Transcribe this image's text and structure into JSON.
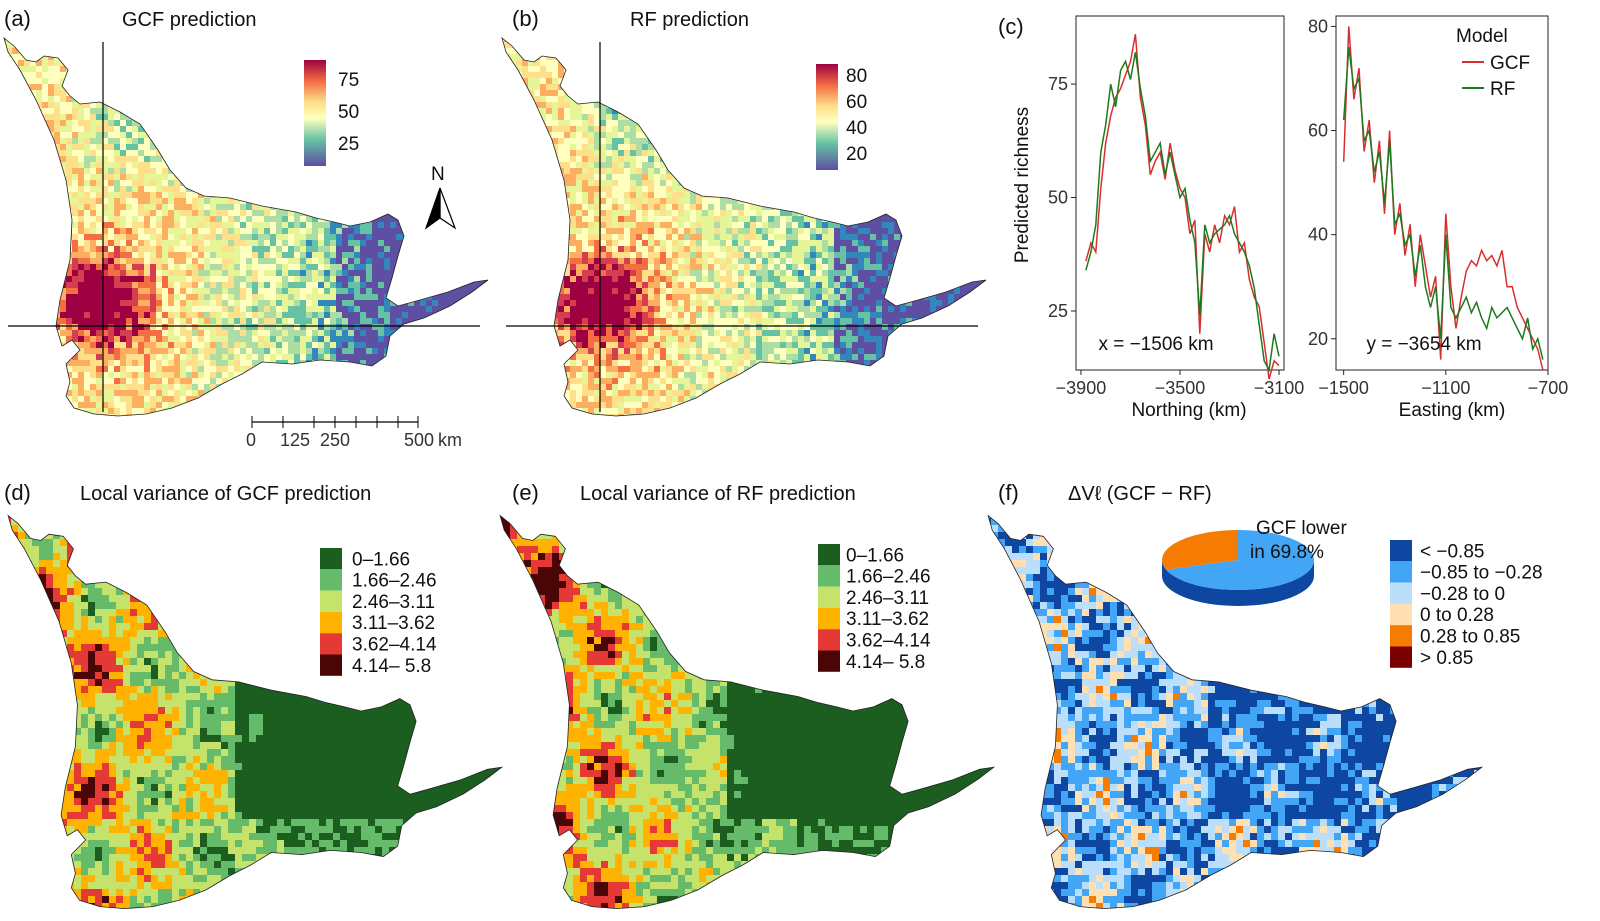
{
  "panels": {
    "a": {
      "label": "(a)",
      "title": "GCF prediction",
      "legend_ticks": [
        "75",
        "50",
        "25"
      ]
    },
    "b": {
      "label": "(b)",
      "title": "RF prediction",
      "legend_ticks": [
        "80",
        "60",
        "40",
        "20"
      ]
    },
    "c": {
      "label": "(c)"
    },
    "d": {
      "label": "(d)",
      "title": "Local variance of GCF prediction"
    },
    "e": {
      "label": "(e)",
      "title": "Local variance of RF prediction"
    },
    "f": {
      "label": "(f)",
      "title": "ΔVℓ (GCF − RF)"
    }
  },
  "north_arrow": {
    "label": "N"
  },
  "scale_bar": {
    "ticks": [
      "0",
      "125",
      "250",
      "500"
    ],
    "unit": "km"
  },
  "variance_legend": {
    "classes": [
      {
        "label": "0–1.66",
        "color": "#1b5e20"
      },
      {
        "label": "1.66–2.46",
        "color": "#66bb6a"
      },
      {
        "label": "2.46–3.11",
        "color": "#c5e36b"
      },
      {
        "label": "3.11–3.62",
        "color": "#ffb300"
      },
      {
        "label": "3.62–4.14",
        "color": "#e53935"
      },
      {
        "label": "4.14– 5.8",
        "color": "#4a0606"
      }
    ]
  },
  "diff_legend": {
    "classes": [
      {
        "label": "< −0.85",
        "color": "#0d47a1"
      },
      {
        "label": "−0.85 to −0.28",
        "color": "#42a5f5"
      },
      {
        "label": "−0.28 to 0",
        "color": "#bbdefb"
      },
      {
        "label": "0 to 0.28",
        "color": "#ffe0b2"
      },
      {
        "label": "0.28 to 0.85",
        "color": "#f57c00"
      },
      {
        "label": "> 0.85",
        "color": "#7b0000"
      }
    ],
    "pie_label_1": "GCF lower",
    "pie_label_2": "in 69.8%",
    "pie_percent": 69.8
  },
  "chart_data": [
    {
      "type": "line",
      "ylabel": "Predicted richness",
      "xlabel": "Northing (km)",
      "annotation": "x = −1506 km",
      "xlim": [
        -3920,
        -3080
      ],
      "ylim": [
        12,
        90
      ],
      "xticks": [
        -3900,
        -3500,
        -3100
      ],
      "yticks": [
        25,
        50,
        75
      ],
      "series": [
        {
          "name": "GCF",
          "color": "#d62f2f",
          "x": [
            -3880,
            -3860,
            -3840,
            -3820,
            -3800,
            -3780,
            -3760,
            -3740,
            -3720,
            -3700,
            -3680,
            -3660,
            -3640,
            -3620,
            -3600,
            -3580,
            -3560,
            -3540,
            -3520,
            -3500,
            -3480,
            -3460,
            -3440,
            -3420,
            -3400,
            -3380,
            -3360,
            -3340,
            -3320,
            -3300,
            -3280,
            -3260,
            -3240,
            -3220,
            -3200,
            -3180,
            -3160,
            -3140,
            -3120,
            -3100
          ],
          "y": [
            36,
            40,
            38,
            52,
            62,
            68,
            72,
            74,
            77,
            80,
            86,
            72,
            66,
            55,
            58,
            60,
            54,
            62,
            56,
            52,
            50,
            42,
            45,
            20,
            42,
            38,
            44,
            40,
            46,
            44,
            48,
            38,
            40,
            32,
            28,
            26,
            18,
            10,
            14,
            13
          ]
        },
        {
          "name": "RF",
          "color": "#1e7a1e",
          "x": [
            -3880,
            -3860,
            -3840,
            -3820,
            -3800,
            -3780,
            -3760,
            -3740,
            -3720,
            -3700,
            -3680,
            -3660,
            -3640,
            -3620,
            -3600,
            -3580,
            -3560,
            -3540,
            -3520,
            -3500,
            -3480,
            -3460,
            -3440,
            -3420,
            -3400,
            -3380,
            -3360,
            -3340,
            -3320,
            -3300,
            -3280,
            -3260,
            -3240,
            -3220,
            -3200,
            -3180,
            -3160,
            -3140,
            -3120,
            -3100
          ],
          "y": [
            34,
            38,
            44,
            60,
            66,
            75,
            70,
            78,
            80,
            76,
            82,
            74,
            68,
            58,
            60,
            62,
            55,
            60,
            55,
            50,
            52,
            45,
            40,
            24,
            44,
            40,
            42,
            43,
            44,
            46,
            42,
            40,
            38,
            35,
            30,
            22,
            14,
            12,
            20,
            15
          ]
        }
      ]
    },
    {
      "type": "line",
      "xlabel": "Easting (km)",
      "annotation": "y = −3654 km",
      "legend_title": "Model",
      "xlim": [
        -1530,
        -700
      ],
      "ylim": [
        14,
        82
      ],
      "xticks": [
        -1500,
        -1100,
        -700
      ],
      "yticks": [
        20,
        40,
        60,
        80
      ],
      "series": [
        {
          "name": "GCF",
          "color": "#d62f2f",
          "x": [
            -1500,
            -1480,
            -1460,
            -1440,
            -1420,
            -1400,
            -1380,
            -1360,
            -1340,
            -1320,
            -1300,
            -1280,
            -1260,
            -1240,
            -1220,
            -1200,
            -1180,
            -1160,
            -1140,
            -1120,
            -1100,
            -1080,
            -1060,
            -1040,
            -1020,
            -1000,
            -980,
            -960,
            -940,
            -920,
            -900,
            -880,
            -860,
            -840,
            -820,
            -800,
            -780,
            -760,
            -740,
            -720
          ],
          "y": [
            54,
            80,
            66,
            72,
            56,
            62,
            50,
            58,
            44,
            60,
            40,
            46,
            36,
            42,
            30,
            40,
            34,
            28,
            32,
            16,
            44,
            30,
            22,
            28,
            33,
            35,
            34,
            37,
            35,
            36,
            34,
            37,
            30,
            30,
            26,
            24,
            22,
            20,
            18,
            14
          ]
        },
        {
          "name": "RF",
          "color": "#1e7a1e",
          "x": [
            -1500,
            -1480,
            -1460,
            -1440,
            -1420,
            -1400,
            -1380,
            -1360,
            -1340,
            -1320,
            -1300,
            -1280,
            -1260,
            -1240,
            -1220,
            -1200,
            -1180,
            -1160,
            -1140,
            -1120,
            -1100,
            -1080,
            -1060,
            -1040,
            -1020,
            -1000,
            -980,
            -960,
            -940,
            -920,
            -900,
            -880,
            -860,
            -840,
            -820,
            -800,
            -780,
            -760,
            -740,
            -720
          ],
          "y": [
            62,
            76,
            68,
            70,
            58,
            60,
            52,
            56,
            46,
            58,
            42,
            44,
            38,
            40,
            32,
            38,
            30,
            26,
            30,
            20,
            40,
            26,
            24,
            26,
            28,
            25,
            27,
            24,
            22,
            26,
            24,
            25,
            26,
            24,
            22,
            20,
            24,
            18,
            20,
            16
          ]
        }
      ]
    }
  ]
}
